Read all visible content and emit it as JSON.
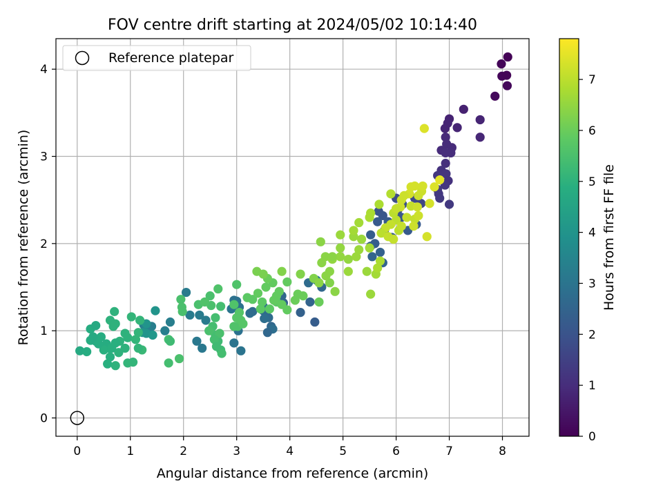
{
  "chart_data": {
    "type": "scatter",
    "title": "FOV centre drift starting at 2024/05/02 10:14:40",
    "xlabel": "Angular distance from reference (arcmin)",
    "ylabel": "Rotation from reference (arcmin)",
    "xlim": [
      -0.4,
      8.5
    ],
    "ylim": [
      -0.21,
      4.35
    ],
    "xticks": [
      0,
      1,
      2,
      3,
      4,
      5,
      6,
      7,
      8
    ],
    "yticks": [
      0,
      1,
      2,
      3,
      4
    ],
    "grid": true,
    "legend": {
      "position": "top-left",
      "entries": [
        "Reference platepar"
      ]
    },
    "reference_point": {
      "x": 0,
      "y": 0
    },
    "colormap": "viridis",
    "colorbar": {
      "label": "Hours from first FF file",
      "range": [
        0,
        7.8
      ],
      "ticks": [
        0,
        1,
        2,
        3,
        4,
        5,
        6,
        7
      ]
    },
    "series": [
      {
        "points": [
          [
            8.1,
            4.14,
            0.05
          ],
          [
            7.98,
            4.06,
            0.1
          ],
          [
            7.99,
            3.92,
            0.12
          ],
          [
            8.08,
            3.93,
            0.08
          ],
          [
            8.09,
            3.81,
            0.15
          ],
          [
            7.86,
            3.69,
            0.2
          ],
          [
            7.27,
            3.54,
            0.7
          ],
          [
            7.0,
            3.43,
            0.75
          ],
          [
            6.97,
            3.38,
            0.8
          ],
          [
            7.15,
            3.33,
            0.8
          ],
          [
            6.92,
            3.32,
            0.8
          ],
          [
            7.58,
            3.42,
            0.8
          ],
          [
            7.58,
            3.22,
            0.85
          ],
          [
            6.93,
            3.22,
            0.9
          ],
          [
            6.95,
            3.14,
            0.95
          ],
          [
            7.05,
            3.1,
            0.95
          ],
          [
            6.85,
            3.07,
            0.95
          ],
          [
            7.03,
            3.04,
            1.0
          ],
          [
            6.93,
            3.04,
            1.0
          ],
          [
            6.93,
            2.92,
            1.05
          ],
          [
            6.85,
            2.84,
            1.1
          ],
          [
            6.94,
            2.8,
            1.15
          ],
          [
            6.78,
            2.78,
            1.2
          ],
          [
            6.98,
            2.72,
            1.1
          ],
          [
            6.92,
            2.67,
            1.2
          ],
          [
            6.8,
            2.57,
            1.25
          ],
          [
            6.82,
            2.52,
            1.3
          ],
          [
            7.0,
            2.45,
            1.3
          ],
          [
            6.78,
            2.62,
            1.3
          ],
          [
            6.47,
            2.46,
            1.6
          ],
          [
            6.35,
            2.52,
            1.7
          ],
          [
            6.0,
            2.52,
            1.8
          ],
          [
            6.12,
            2.45,
            1.9
          ],
          [
            6.03,
            2.38,
            1.9
          ],
          [
            5.67,
            2.37,
            2.0
          ],
          [
            5.75,
            2.32,
            2.1
          ],
          [
            6.1,
            2.3,
            2.1
          ],
          [
            6.22,
            2.15,
            2.2
          ],
          [
            6.38,
            2.22,
            2.2
          ],
          [
            5.65,
            2.25,
            2.2
          ],
          [
            5.85,
            2.25,
            2.2
          ],
          [
            5.78,
            2.15,
            2.3
          ],
          [
            5.52,
            2.1,
            2.3
          ],
          [
            5.6,
            2.0,
            2.3
          ],
          [
            5.52,
            1.97,
            2.4
          ],
          [
            5.7,
            1.9,
            2.4
          ],
          [
            5.55,
            1.85,
            2.5
          ],
          [
            5.75,
            1.78,
            2.5
          ],
          [
            5.92,
            2.07,
            2.3
          ],
          [
            3.5,
            1.23,
            2.6
          ],
          [
            3.55,
            1.2,
            2.7
          ],
          [
            3.6,
            1.15,
            2.7
          ],
          [
            3.52,
            1.14,
            2.8
          ],
          [
            3.25,
            1.2,
            2.8
          ],
          [
            3.3,
            1.22,
            2.7
          ],
          [
            2.95,
            1.35,
            2.9
          ],
          [
            3.0,
            1.34,
            2.9
          ],
          [
            3.05,
            1.27,
            2.9
          ],
          [
            2.9,
            1.25,
            3.0
          ],
          [
            3.5,
            1.28,
            2.8
          ],
          [
            3.65,
            1.05,
            2.6
          ],
          [
            3.68,
            1.02,
            2.8
          ],
          [
            3.58,
            0.98,
            2.6
          ],
          [
            3.88,
            1.32,
            2.5
          ],
          [
            3.85,
            1.4,
            2.6
          ],
          [
            4.2,
            1.21,
            2.4
          ],
          [
            4.38,
            1.33,
            2.5
          ],
          [
            4.47,
            1.1,
            2.3
          ],
          [
            3.03,
            1.0,
            2.9
          ],
          [
            2.95,
            0.86,
            3.0
          ],
          [
            3.08,
            0.77,
            3.0
          ],
          [
            2.35,
            0.8,
            3.1
          ],
          [
            2.25,
            0.88,
            3.1
          ],
          [
            2.3,
            1.18,
            3.2
          ],
          [
            2.42,
            1.12,
            3.2
          ],
          [
            2.12,
            1.18,
            3.2
          ],
          [
            2.05,
            1.44,
            3.2
          ],
          [
            1.75,
            1.1,
            3.3
          ],
          [
            1.65,
            1.0,
            3.3
          ],
          [
            1.4,
            1.05,
            3.3
          ],
          [
            1.35,
            1.0,
            3.4
          ],
          [
            1.25,
            1.07,
            3.4
          ],
          [
            4.35,
            1.55,
            2.7
          ],
          [
            4.6,
            1.5,
            2.6
          ],
          [
            4.5,
            1.58,
            3.2
          ],
          [
            1.47,
            1.23,
            4.0
          ],
          [
            1.23,
            0.98,
            4.0
          ],
          [
            1.3,
            0.97,
            4.0
          ],
          [
            1.42,
            0.95,
            4.1
          ],
          [
            1.3,
            1.08,
            4.0
          ],
          [
            0.05,
            0.77,
            4.7
          ],
          [
            0.18,
            0.76,
            4.8
          ],
          [
            0.25,
            1.02,
            4.8
          ],
          [
            0.35,
            1.06,
            4.7
          ],
          [
            0.25,
            0.89,
            4.8
          ],
          [
            0.35,
            0.88,
            4.7
          ],
          [
            0.45,
            0.93,
            4.8
          ],
          [
            0.55,
            0.85,
            4.8
          ],
          [
            0.6,
            0.8,
            4.8
          ],
          [
            0.5,
            0.78,
            4.9
          ],
          [
            0.62,
            0.7,
            4.9
          ],
          [
            0.57,
            0.62,
            4.9
          ],
          [
            0.72,
            0.6,
            5.0
          ],
          [
            0.7,
            1.22,
            5.0
          ],
          [
            0.62,
            1.12,
            5.0
          ],
          [
            0.68,
            1.05,
            5.0
          ],
          [
            0.72,
            1.08,
            5.0
          ],
          [
            0.8,
            0.88,
            5.0
          ],
          [
            0.9,
            0.97,
            5.0
          ],
          [
            0.95,
            0.92,
            5.0
          ],
          [
            0.9,
            0.8,
            5.0
          ],
          [
            0.78,
            0.75,
            5.0
          ],
          [
            0.95,
            0.63,
            5.1
          ],
          [
            1.05,
            0.64,
            5.1
          ],
          [
            1.02,
            1.16,
            5.1
          ],
          [
            1.18,
            1.12,
            5.1
          ],
          [
            1.15,
            0.98,
            5.1
          ],
          [
            1.1,
            0.9,
            5.1
          ],
          [
            1.22,
            0.78,
            5.2
          ],
          [
            1.15,
            0.8,
            5.1
          ],
          [
            0.72,
            0.86,
            4.9
          ],
          [
            0.4,
            0.85,
            4.8
          ],
          [
            0.3,
            0.93,
            4.7
          ],
          [
            0.65,
            0.8,
            4.9
          ],
          [
            1.72,
            0.63,
            5.4
          ],
          [
            1.92,
            0.68,
            5.5
          ],
          [
            1.72,
            0.9,
            5.4
          ],
          [
            1.75,
            0.88,
            5.3
          ],
          [
            1.98,
            1.22,
            5.5
          ],
          [
            1.95,
            1.36,
            5.5
          ],
          [
            1.97,
            1.27,
            5.5
          ],
          [
            2.28,
            1.3,
            5.5
          ],
          [
            2.52,
            1.29,
            5.5
          ],
          [
            2.7,
            1.28,
            5.4
          ],
          [
            2.5,
            1.4,
            5.5
          ],
          [
            2.4,
            1.33,
            5.6
          ],
          [
            2.65,
            1.48,
            5.6
          ],
          [
            2.6,
            1.15,
            5.4
          ],
          [
            2.55,
            1.05,
            5.4
          ],
          [
            2.6,
            0.95,
            5.4
          ],
          [
            2.65,
            0.88,
            5.3
          ],
          [
            2.7,
            0.78,
            5.3
          ],
          [
            2.72,
            0.74,
            5.4
          ],
          [
            2.68,
            0.97,
            5.5
          ],
          [
            2.58,
            0.9,
            5.4
          ],
          [
            2.62,
            0.82,
            5.3
          ],
          [
            2.48,
            1.0,
            5.5
          ],
          [
            3.0,
            1.53,
            5.6
          ],
          [
            2.95,
            1.3,
            5.6
          ],
          [
            3.02,
            1.05,
            5.6
          ],
          [
            3.0,
            1.15,
            5.7
          ],
          [
            3.08,
            1.12,
            5.7
          ],
          [
            3.12,
            1.08,
            5.7
          ],
          [
            3.05,
            1.21,
            5.7
          ],
          [
            3.3,
            1.36,
            5.8
          ],
          [
            3.48,
            1.33,
            5.8
          ],
          [
            3.45,
            1.25,
            5.8
          ],
          [
            3.62,
            1.25,
            5.8
          ],
          [
            3.75,
            1.33,
            5.8
          ],
          [
            3.95,
            1.24,
            5.9
          ],
          [
            3.75,
            1.4,
            5.9
          ],
          [
            3.85,
            1.3,
            5.9
          ],
          [
            3.68,
            1.55,
            5.9
          ],
          [
            3.8,
            1.45,
            5.9
          ],
          [
            3.95,
            1.56,
            5.9
          ],
          [
            3.7,
            1.35,
            5.9
          ],
          [
            3.55,
            1.5,
            5.9
          ],
          [
            3.58,
            1.6,
            6.0
          ],
          [
            4.15,
            1.42,
            6.0
          ],
          [
            4.1,
            1.35,
            6.0
          ],
          [
            4.25,
            1.4,
            6.0
          ],
          [
            4.55,
            1.33,
            6.0
          ],
          [
            3.4,
            1.43,
            5.9
          ],
          [
            2.95,
            1.05,
            5.6
          ],
          [
            3.2,
            1.38,
            5.8
          ],
          [
            3.38,
            1.68,
            6.2
          ],
          [
            3.5,
            1.65,
            6.2
          ],
          [
            3.85,
            1.68,
            6.3
          ],
          [
            4.2,
            1.65,
            6.3
          ],
          [
            4.45,
            1.6,
            6.3
          ],
          [
            4.55,
            1.55,
            6.4
          ],
          [
            4.58,
            2.02,
            6.4
          ],
          [
            4.75,
            1.68,
            6.4
          ],
          [
            4.6,
            1.78,
            6.4
          ],
          [
            4.67,
            1.85,
            6.4
          ],
          [
            4.8,
            1.82,
            6.5
          ],
          [
            4.95,
            1.85,
            6.5
          ],
          [
            5.1,
            1.82,
            6.5
          ],
          [
            4.85,
            1.45,
            6.4
          ],
          [
            4.95,
            2.1,
            6.6
          ],
          [
            5.2,
            2.08,
            6.6
          ],
          [
            5.3,
            1.93,
            6.6
          ],
          [
            5.35,
            2.05,
            6.6
          ],
          [
            5.2,
            2.15,
            6.7
          ],
          [
            5.3,
            2.24,
            6.7
          ],
          [
            5.1,
            1.68,
            6.6
          ],
          [
            5.45,
            1.68,
            6.6
          ],
          [
            5.52,
            1.42,
            6.6
          ],
          [
            5.5,
            1.95,
            6.7
          ],
          [
            5.62,
            1.65,
            6.7
          ],
          [
            5.65,
            1.72,
            6.8
          ],
          [
            5.7,
            1.8,
            6.8
          ],
          [
            5.5,
            2.3,
            6.8
          ],
          [
            5.68,
            2.45,
            6.8
          ],
          [
            5.9,
            2.57,
            6.9
          ],
          [
            5.52,
            2.35,
            6.8
          ],
          [
            4.95,
            1.95,
            6.5
          ],
          [
            4.8,
            1.85,
            6.4
          ],
          [
            5.25,
            1.85,
            6.6
          ],
          [
            4.75,
            1.55,
            6.3
          ],
          [
            4.68,
            1.63,
            6.4
          ],
          [
            5.95,
            2.35,
            7.0
          ],
          [
            6.0,
            2.27,
            7.0
          ],
          [
            6.05,
            2.15,
            7.0
          ],
          [
            6.1,
            2.2,
            7.1
          ],
          [
            6.2,
            2.3,
            7.1
          ],
          [
            6.28,
            2.43,
            7.1
          ],
          [
            6.35,
            2.28,
            7.1
          ],
          [
            6.33,
            2.2,
            7.2
          ],
          [
            6.42,
            2.32,
            7.2
          ],
          [
            6.4,
            2.42,
            7.2
          ],
          [
            6.48,
            2.6,
            7.2
          ],
          [
            6.35,
            2.66,
            7.3
          ],
          [
            6.28,
            2.65,
            7.3
          ],
          [
            6.25,
            2.57,
            7.3
          ],
          [
            6.15,
            2.55,
            7.2
          ],
          [
            6.08,
            2.42,
            7.2
          ],
          [
            6.0,
            2.4,
            7.1
          ],
          [
            5.9,
            2.22,
            7.1
          ],
          [
            5.8,
            2.18,
            7.1
          ],
          [
            5.72,
            2.12,
            7.0
          ],
          [
            5.85,
            2.08,
            7.1
          ],
          [
            5.95,
            2.05,
            7.1
          ],
          [
            6.58,
            2.08,
            7.3
          ],
          [
            6.63,
            2.46,
            7.3
          ],
          [
            6.53,
            3.32,
            7.4
          ],
          [
            6.82,
            2.73,
            7.5
          ],
          [
            6.72,
            2.65,
            7.4
          ],
          [
            6.5,
            2.66,
            7.3
          ],
          [
            6.42,
            2.55,
            7.2
          ],
          [
            6.1,
            2.5,
            7.2
          ]
        ]
      }
    ]
  }
}
